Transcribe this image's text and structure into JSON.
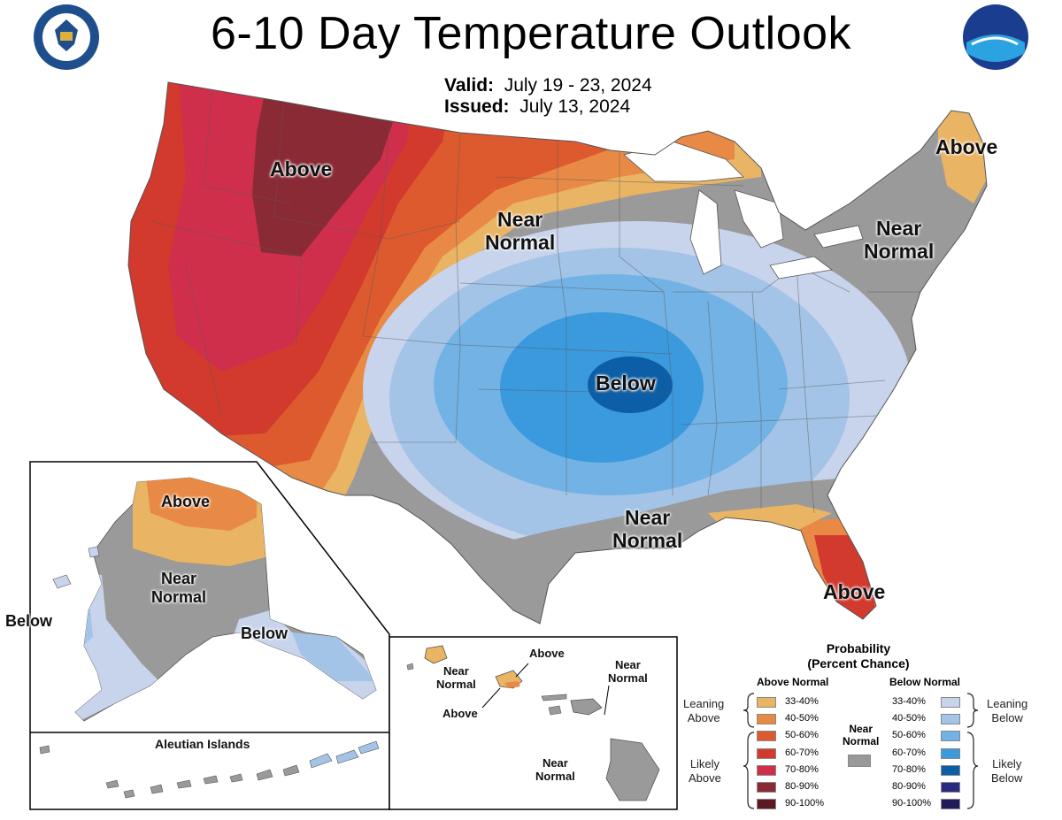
{
  "title": "6-10 Day Temperature Outlook",
  "valid_label": "Valid:",
  "valid_dates": "July 19 - 23, 2024",
  "issued_label": "Issued:",
  "issued_date": "July 13, 2024",
  "logos": {
    "left": "Department of Commerce seal",
    "right": "NOAA logo",
    "noaa_text": "NOAA",
    "seal_text": "DEPARTMENT OF COMMERCE · UNITED STATES OF AMERICA"
  },
  "conus_labels": {
    "above_nw": "Above",
    "near_normal_plains": "Near\nNormal",
    "below_central": "Below",
    "near_normal_ne": "Near\nNormal",
    "above_maine": "Above",
    "near_normal_gulf": "Near\nNormal",
    "above_florida": "Above"
  },
  "alaska_labels": {
    "above": "Above",
    "near_normal": "Near\nNormal",
    "below_west": "Below",
    "below_se": "Below",
    "aleutian_title": "Aleutian Islands"
  },
  "hawaii_labels": {
    "near_normal_kauai": "Near\nNormal",
    "above_top": "Above",
    "near_normal_maui": "Near\nNormal",
    "above_bottom": "Above",
    "near_normal_big": "Near\nNormal"
  },
  "legend": {
    "title": "Probability\n(Percent Chance)",
    "above_header": "Above Normal",
    "below_header": "Below Normal",
    "near_header": "Near\nNormal",
    "leaning_above": "Leaning\nAbove",
    "likely_above": "Likely\nAbove",
    "leaning_below": "Leaning\nBelow",
    "likely_below": "Likely\nBelow",
    "above_rows": [
      {
        "range": "33-40%",
        "color": "#e9b463"
      },
      {
        "range": "40-50%",
        "color": "#e88a45"
      },
      {
        "range": "50-60%",
        "color": "#dd5a2e"
      },
      {
        "range": "60-70%",
        "color": "#d13a2d"
      },
      {
        "range": "70-80%",
        "color": "#cf2f4a"
      },
      {
        "range": "80-90%",
        "color": "#8a2a35"
      },
      {
        "range": "90-100%",
        "color": "#5a1a1f"
      }
    ],
    "below_rows": [
      {
        "range": "33-40%",
        "color": "#c8d3ec"
      },
      {
        "range": "40-50%",
        "color": "#a3c4e6"
      },
      {
        "range": "50-60%",
        "color": "#73b2e4"
      },
      {
        "range": "60-70%",
        "color": "#3b99de"
      },
      {
        "range": "70-80%",
        "color": "#0c5fa6"
      },
      {
        "range": "80-90%",
        "color": "#2a2a80"
      },
      {
        "range": "90-100%",
        "color": "#1f1a5a"
      }
    ],
    "near_color": "#999999"
  },
  "colors": {
    "near_normal": "#9a9a9a",
    "ocean": "#ffffff",
    "border": "#555555"
  }
}
